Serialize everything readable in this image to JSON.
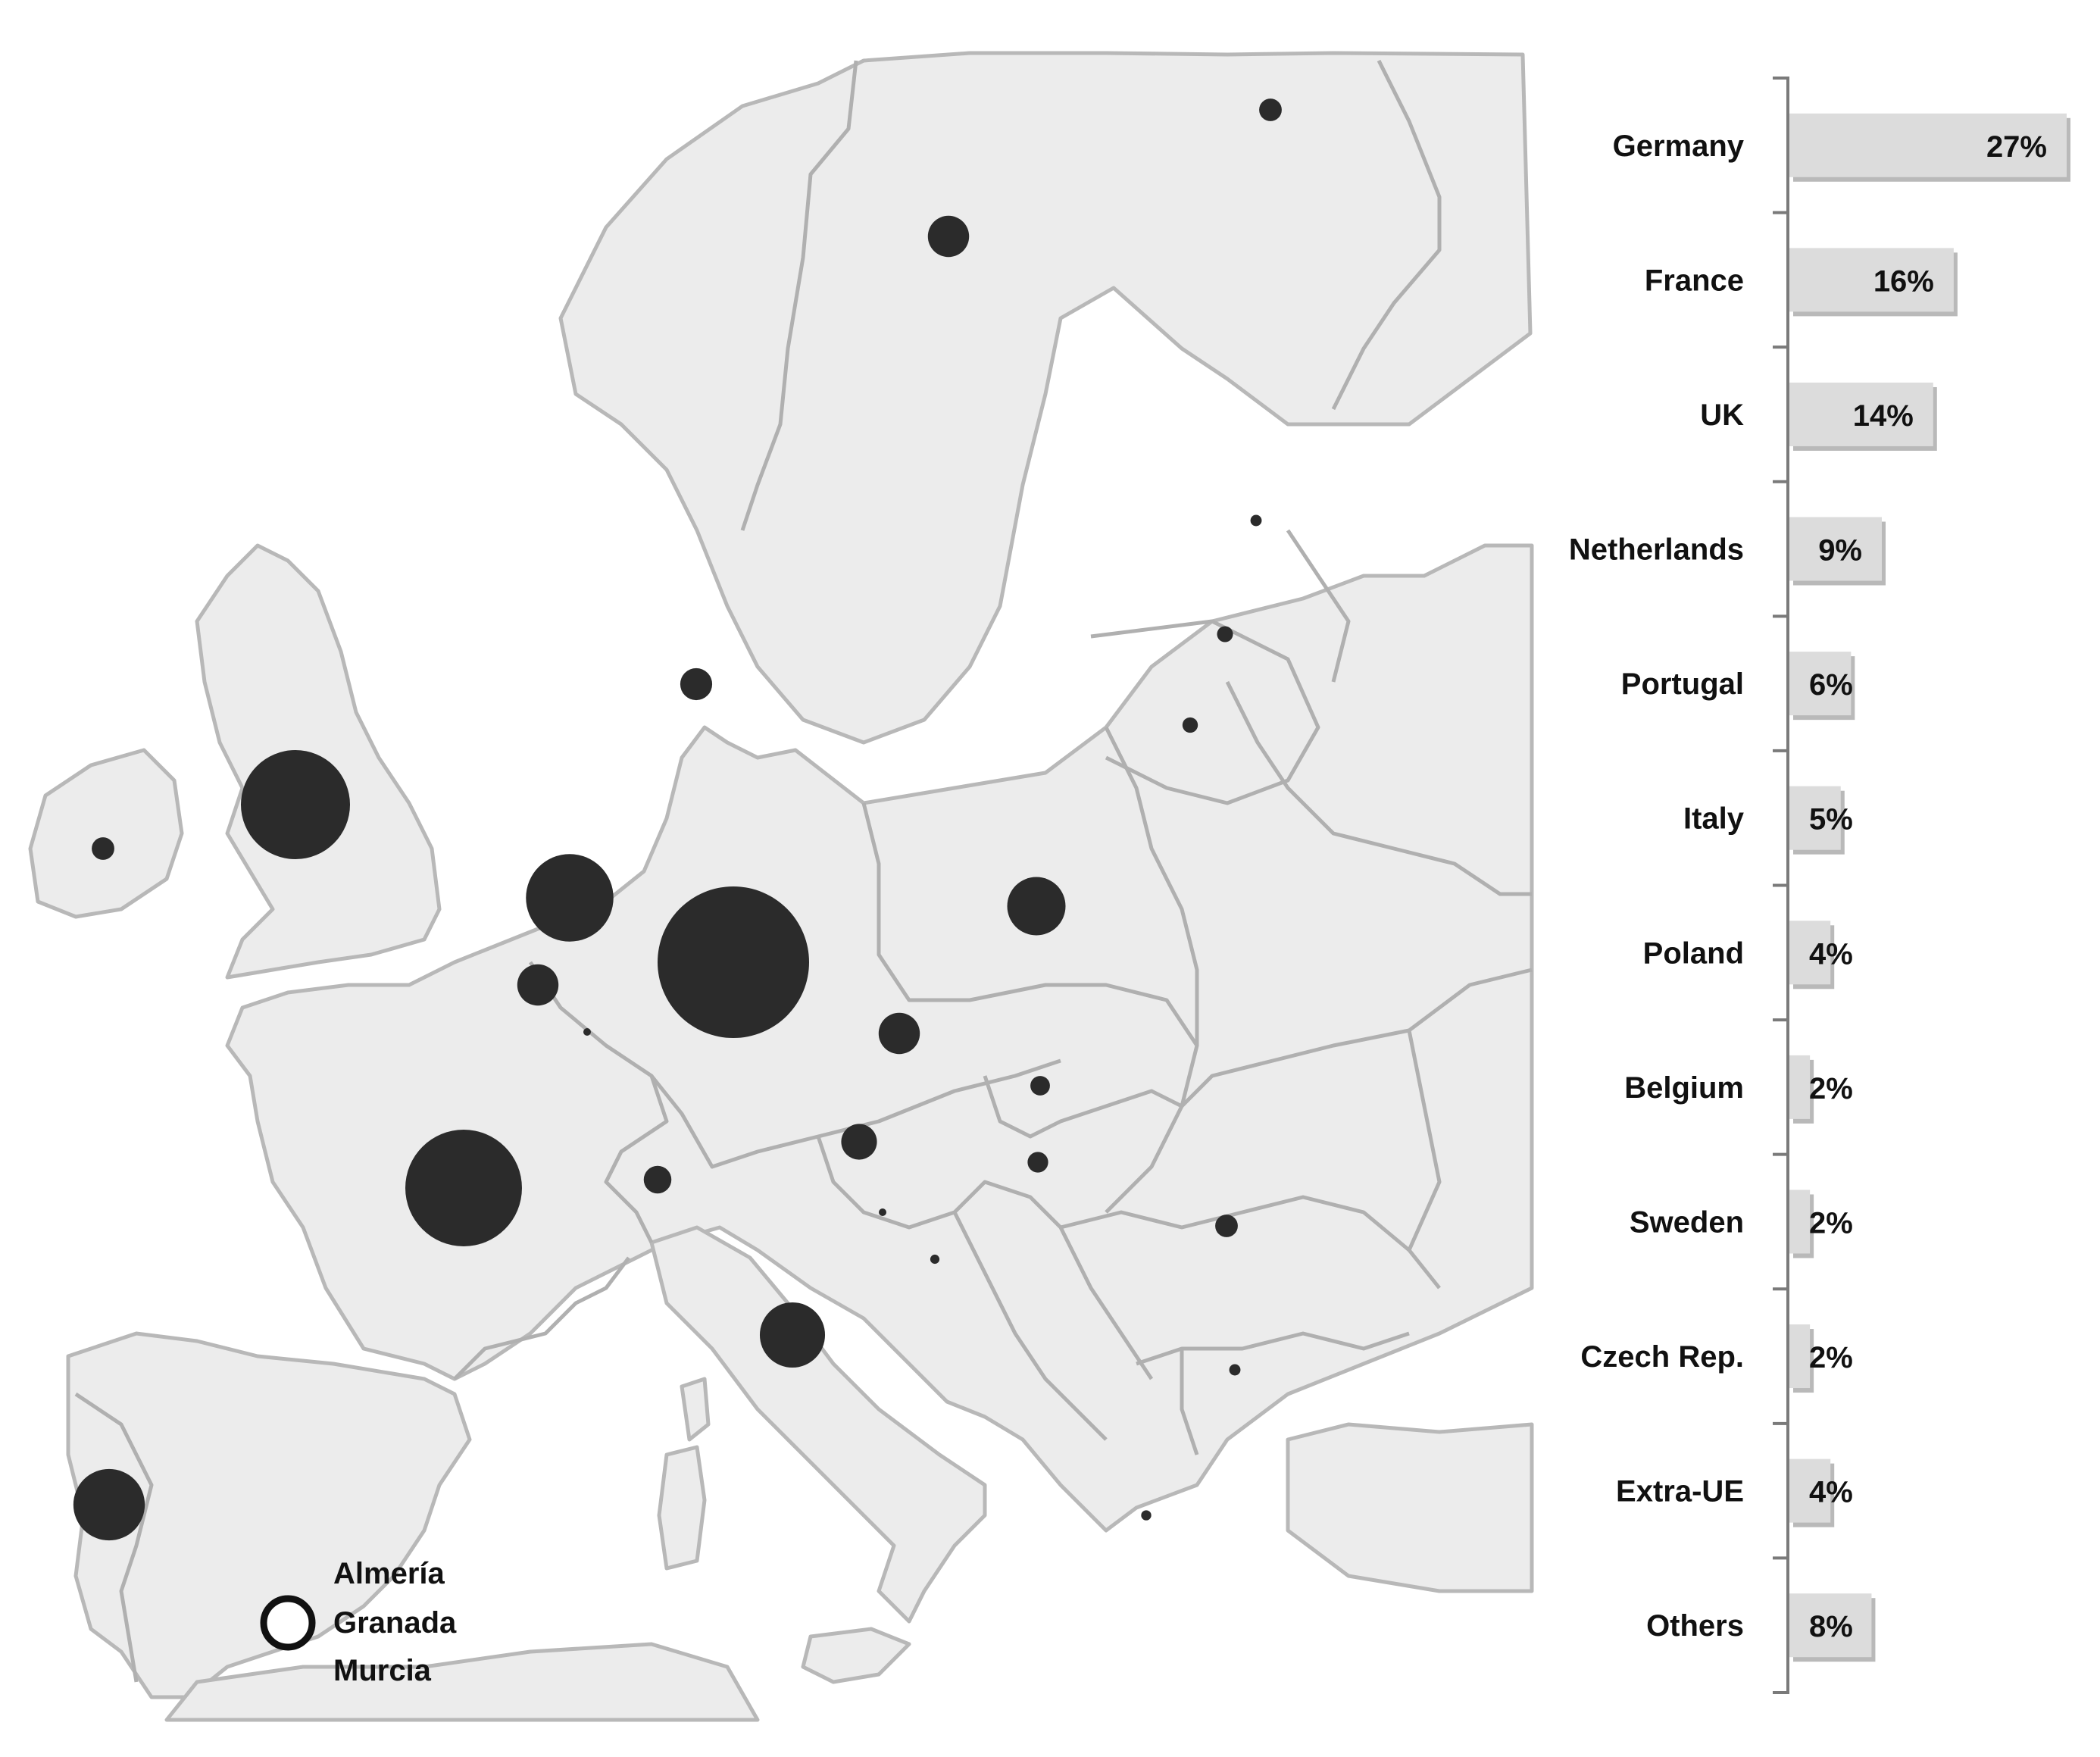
{
  "chart_data": [
    {
      "type": "bar",
      "orientation": "horizontal",
      "categories": [
        "Germany",
        "France",
        "UK",
        "Netherlands",
        "Portugal",
        "Italy",
        "Poland",
        "Belgium",
        "Sweden",
        "Czech Rep.",
        "Extra-UE",
        "Others"
      ],
      "values": [
        27,
        16,
        14,
        9,
        6,
        5,
        4,
        2,
        2,
        2,
        4,
        8
      ],
      "value_labels": [
        "27%",
        "16%",
        "14%",
        "9%",
        "6%",
        "5%",
        "4%",
        "2%",
        "2%",
        "2%",
        "4%",
        "8%"
      ],
      "unit": "%",
      "xlim": [
        0,
        27
      ],
      "grid": false,
      "bar_color": "#dcdcdc"
    },
    {
      "type": "bubble-map",
      "region": "Europe",
      "legend": {
        "marker": "hollow-circle",
        "labels": [
          "Almería",
          "Granada",
          "Murcia"
        ]
      },
      "bubble_color": "#2b2b2b",
      "markers": [
        {
          "country": "Germany",
          "value": 27
        },
        {
          "country": "France",
          "value": 16
        },
        {
          "country": "UK",
          "value": 14
        },
        {
          "country": "Netherlands",
          "value": 9
        },
        {
          "country": "Portugal",
          "value": 6
        },
        {
          "country": "Italy",
          "value": 5
        },
        {
          "country": "Poland",
          "value": 4
        },
        {
          "country": "Belgium",
          "value": 2
        },
        {
          "country": "Sweden",
          "value": 2
        },
        {
          "country": "Czech Rep.",
          "value": 2
        },
        {
          "country": "Austria",
          "value": 1.5
        },
        {
          "country": "Denmark",
          "value": 1.2
        },
        {
          "country": "Switzerland",
          "value": 0.9
        },
        {
          "country": "Finland",
          "value": 0.6
        },
        {
          "country": "Romania",
          "value": 0.6
        },
        {
          "country": "Hungary",
          "value": 0.5
        },
        {
          "country": "Slovakia",
          "value": 0.45
        },
        {
          "country": "Ireland",
          "value": 0.6
        },
        {
          "country": "Latvia",
          "value": 0.3
        },
        {
          "country": "Lithuania",
          "value": 0.28
        },
        {
          "country": "Estonia",
          "value": 0.15
        },
        {
          "country": "Bulgaria",
          "value": 0.15
        },
        {
          "country": "Greece",
          "value": 0.12
        },
        {
          "country": "Slovenia",
          "value": 0.05
        },
        {
          "country": "Croatia",
          "value": 0.1
        },
        {
          "country": "Luxembourg",
          "value": 0.03
        }
      ]
    }
  ]
}
